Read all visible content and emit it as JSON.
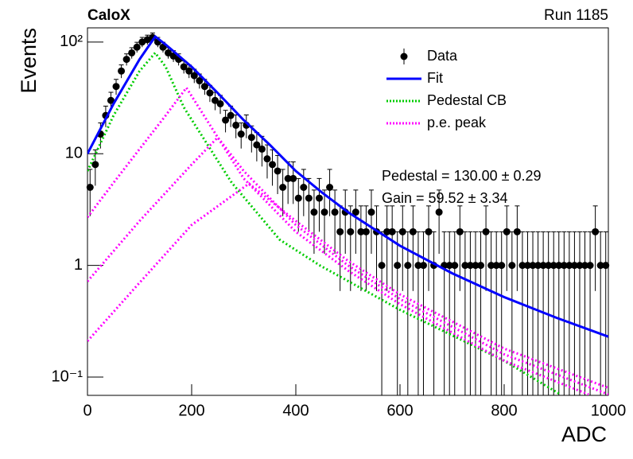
{
  "chart_data": {
    "type": "scatter",
    "title": "CaloX",
    "subtitle": "Run 1185",
    "x_label": "ADC",
    "y_label": "Events",
    "log_y": true,
    "xlim": [
      0,
      1000
    ],
    "ylim": [
      0.0686,
      134
    ],
    "xticks": [
      0,
      200,
      400,
      600,
      800,
      1000
    ],
    "yticks": [
      {
        "value": 0.1,
        "label": "10⁻¹"
      },
      1,
      10,
      {
        "value": 100,
        "label": "10²"
      }
    ],
    "legend": "top-right",
    "annotations": [
      "Pedestal = 130.00 ± 0.29",
      "Gain = 59.52 ± 3.34"
    ],
    "series": [
      {
        "name": "Data",
        "color": "#000000",
        "style": "points",
        "x": [
          5,
          15,
          25,
          35,
          45,
          55,
          65,
          75,
          85,
          95,
          105,
          115,
          125,
          135,
          145,
          155,
          165,
          175,
          185,
          195,
          205,
          215,
          225,
          235,
          245,
          255,
          265,
          275,
          285,
          295,
          305,
          315,
          325,
          335,
          345,
          355,
          365,
          375,
          385,
          395,
          405,
          415,
          425,
          435,
          445,
          455,
          465,
          475,
          485,
          495,
          505,
          515,
          525,
          535,
          545,
          555,
          565,
          575,
          585,
          595,
          605,
          615,
          625,
          635,
          645,
          655,
          665,
          675,
          685,
          695,
          705,
          715,
          725,
          735,
          745,
          755,
          765,
          775,
          785,
          795,
          805,
          815,
          825,
          835,
          845,
          855,
          865,
          875,
          885,
          895,
          905,
          915,
          925,
          935,
          945,
          955,
          965,
          975,
          985,
          995
        ],
        "values": [
          5,
          8,
          15,
          22,
          30,
          40,
          55,
          70,
          80,
          90,
          100,
          105,
          110,
          100,
          90,
          80,
          75,
          70,
          60,
          55,
          50,
          45,
          40,
          35,
          30,
          28,
          20,
          22,
          18,
          15,
          18,
          14,
          12,
          11,
          9,
          8,
          7,
          5,
          6,
          6,
          4,
          5,
          4,
          3,
          4,
          3,
          5,
          3,
          2,
          3,
          2,
          3,
          2,
          2,
          3,
          2,
          1,
          2,
          2,
          1,
          2,
          1,
          2,
          1,
          1,
          2,
          1,
          3,
          1,
          1,
          1,
          2,
          1,
          1,
          1,
          1,
          2,
          1,
          1,
          1,
          2,
          1,
          2,
          1,
          1,
          1,
          1,
          1,
          1,
          1,
          1,
          1,
          1,
          1,
          1,
          1,
          1,
          2,
          1,
          1
        ],
        "errors": [
          2.24,
          2.83,
          3.87,
          4.69,
          5.48,
          6.32,
          7.42,
          8.37,
          8.94,
          9.49,
          10,
          10.25,
          10.49,
          10,
          9.49,
          8.94,
          8.66,
          8.37,
          7.75,
          7.42,
          7.07,
          6.71,
          6.32,
          5.92,
          5.48,
          5.29,
          4.47,
          4.69,
          4.24,
          3.87,
          4.24,
          3.74,
          3.46,
          3.32,
          3,
          2.83,
          2.65,
          2.24,
          2.45,
          2.45,
          2,
          2.24,
          2,
          1.73,
          2,
          1.73,
          2.24,
          1.73,
          1.41,
          1.73,
          1.41,
          1.73,
          1.41,
          1.41,
          1.73,
          1.41,
          1,
          1.41,
          1.41,
          1,
          1.41,
          1,
          1.41,
          1,
          1,
          1.41,
          1,
          1.73,
          1,
          1,
          1,
          1.41,
          1,
          1,
          1,
          1,
          1.41,
          1,
          1,
          1,
          1.41,
          1,
          1.41,
          1,
          1,
          1,
          1,
          1,
          1,
          1,
          1,
          1,
          1,
          1,
          1,
          1,
          1,
          1.41,
          1,
          1
        ]
      },
      {
        "name": "Fit",
        "color": "#0000ff",
        "style": "solid",
        "x": [
          0,
          50,
          100,
          130,
          150,
          200,
          250,
          300,
          350,
          400,
          450,
          500,
          600,
          700,
          800,
          900,
          1000
        ],
        "values": [
          10,
          28,
          70,
          112,
          95,
          60,
          35,
          20,
          12,
          7,
          4.5,
          3,
          1.5,
          0.85,
          0.52,
          0.34,
          0.23
        ]
      },
      {
        "name": "Pedestal CB",
        "color": "#00cc00",
        "style": "dotted",
        "x": [
          0,
          50,
          100,
          130,
          150,
          185,
          277,
          369,
          446,
          600,
          800,
          908
        ],
        "values": [
          7,
          22,
          55,
          80,
          60,
          26,
          5.5,
          1.7,
          1,
          0.4,
          0.14,
          0.07
        ]
      },
      {
        "name": "p.e. peak",
        "color": "#ff00ff",
        "style": "dotted",
        "x": [
          0,
          50,
          100,
          150,
          190,
          250,
          300,
          400,
          500,
          600,
          800,
          962
        ],
        "values": [
          2.7,
          5.5,
          11,
          22,
          39,
          14,
          6,
          2,
          0.9,
          0.45,
          0.14,
          0.07
        ]
      },
      {
        "color": "#ff00ff",
        "style": "dotted",
        "x": [
          0,
          100,
          200,
          250,
          300,
          400,
          500,
          600,
          800,
          1000
        ],
        "values": [
          0.72,
          2.5,
          8,
          14,
          7,
          2.3,
          1,
          0.5,
          0.16,
          0.07
        ]
      },
      {
        "color": "#ff00ff",
        "style": "dotted",
        "x": [
          0,
          100,
          200,
          310,
          400,
          500,
          600,
          800,
          1000
        ],
        "values": [
          0.21,
          0.7,
          2.3,
          5.4,
          2.5,
          1.1,
          0.55,
          0.18,
          0.08
        ]
      }
    ]
  }
}
